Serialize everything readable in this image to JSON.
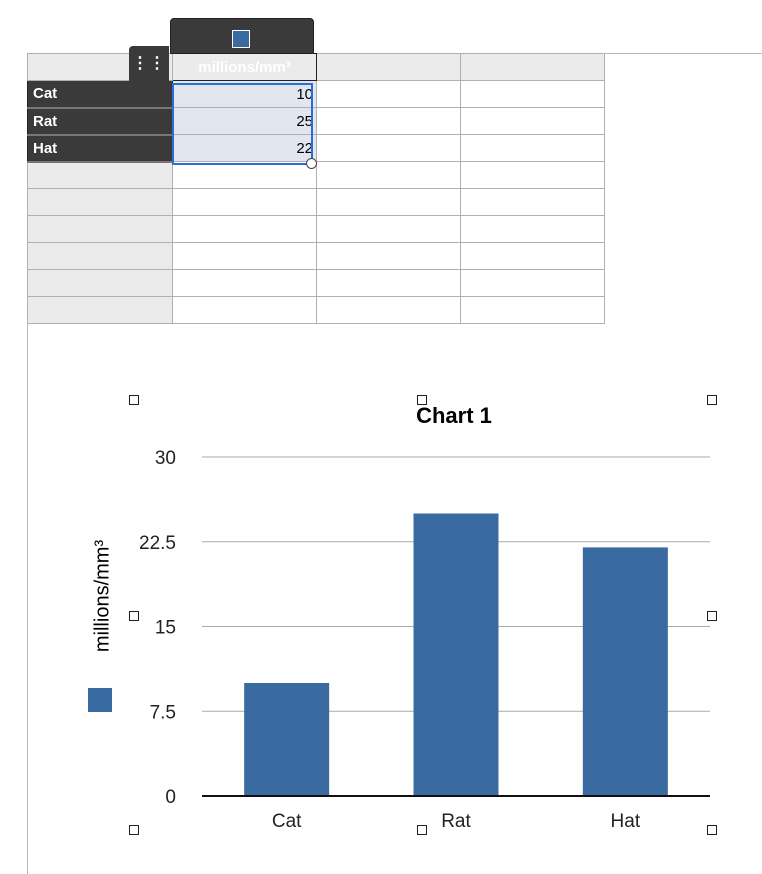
{
  "table": {
    "column_header": "millions/mm³",
    "rows": [
      {
        "label": "Cat",
        "value": "10"
      },
      {
        "label": "Rat",
        "value": "25"
      },
      {
        "label": "Hat",
        "value": "22"
      }
    ]
  },
  "grip_icon": "column-grip-icon",
  "colors": {
    "series": "#3a6ba0",
    "selection": "#2b6fd6",
    "header_dark": "#3a3a3a"
  },
  "chart_data": {
    "type": "bar",
    "title": "Chart 1",
    "categories": [
      "Cat",
      "Rat",
      "Hat"
    ],
    "series": [
      {
        "name": "millions/mm³",
        "values": [
          10,
          25,
          22
        ]
      }
    ],
    "xlabel": "",
    "ylabel": "millions/mm³",
    "ylim": [
      0,
      30
    ],
    "yticks": [
      "0",
      "7.5",
      "15",
      "22.5",
      "30"
    ],
    "grid": true,
    "legend": "left"
  }
}
